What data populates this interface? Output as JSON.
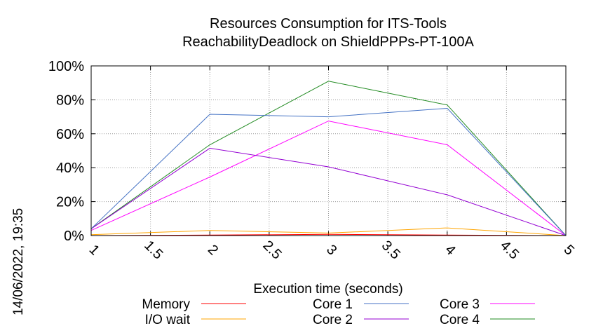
{
  "timestamp": "14/06/2022, 19:35",
  "chart_data": {
    "type": "line",
    "title": [
      "Resources Consumption for ITS-Tools",
      "ReachabilityDeadlock on ShieldPPPs-PT-100A"
    ],
    "xlabel": "Execution time (seconds)",
    "ylabel": "",
    "xlim": [
      1,
      5
    ],
    "ylim": [
      0,
      100
    ],
    "x_ticks": [
      "1",
      "1.5",
      "2",
      "2.5",
      "3",
      "3.5",
      "4",
      "4.5",
      "5"
    ],
    "y_ticks": [
      "0%",
      "20%",
      "40%",
      "60%",
      "80%",
      "100%"
    ],
    "grid": true,
    "legend_position": "bottom",
    "x": [
      1,
      2,
      3,
      4,
      5
    ],
    "series": [
      {
        "name": "Memory",
        "color": "#ff0000",
        "values": [
          0,
          0.3,
          0.7,
          0.3,
          0
        ]
      },
      {
        "name": "I/O wait",
        "color": "#ffa500",
        "values": [
          0.5,
          3,
          1.5,
          4.5,
          0
        ]
      },
      {
        "name": "Core 1",
        "color": "#4472c4",
        "values": [
          4,
          71.5,
          70,
          75,
          0
        ]
      },
      {
        "name": "Core 2",
        "color": "#9400d3",
        "values": [
          4,
          51.5,
          40.5,
          24,
          0
        ]
      },
      {
        "name": "Core 3",
        "color": "#ff00ff",
        "values": [
          3,
          34.5,
          67.5,
          53.5,
          0
        ]
      },
      {
        "name": "Core 4",
        "color": "#228b22",
        "values": [
          4,
          53.5,
          91,
          77,
          0
        ]
      }
    ]
  }
}
